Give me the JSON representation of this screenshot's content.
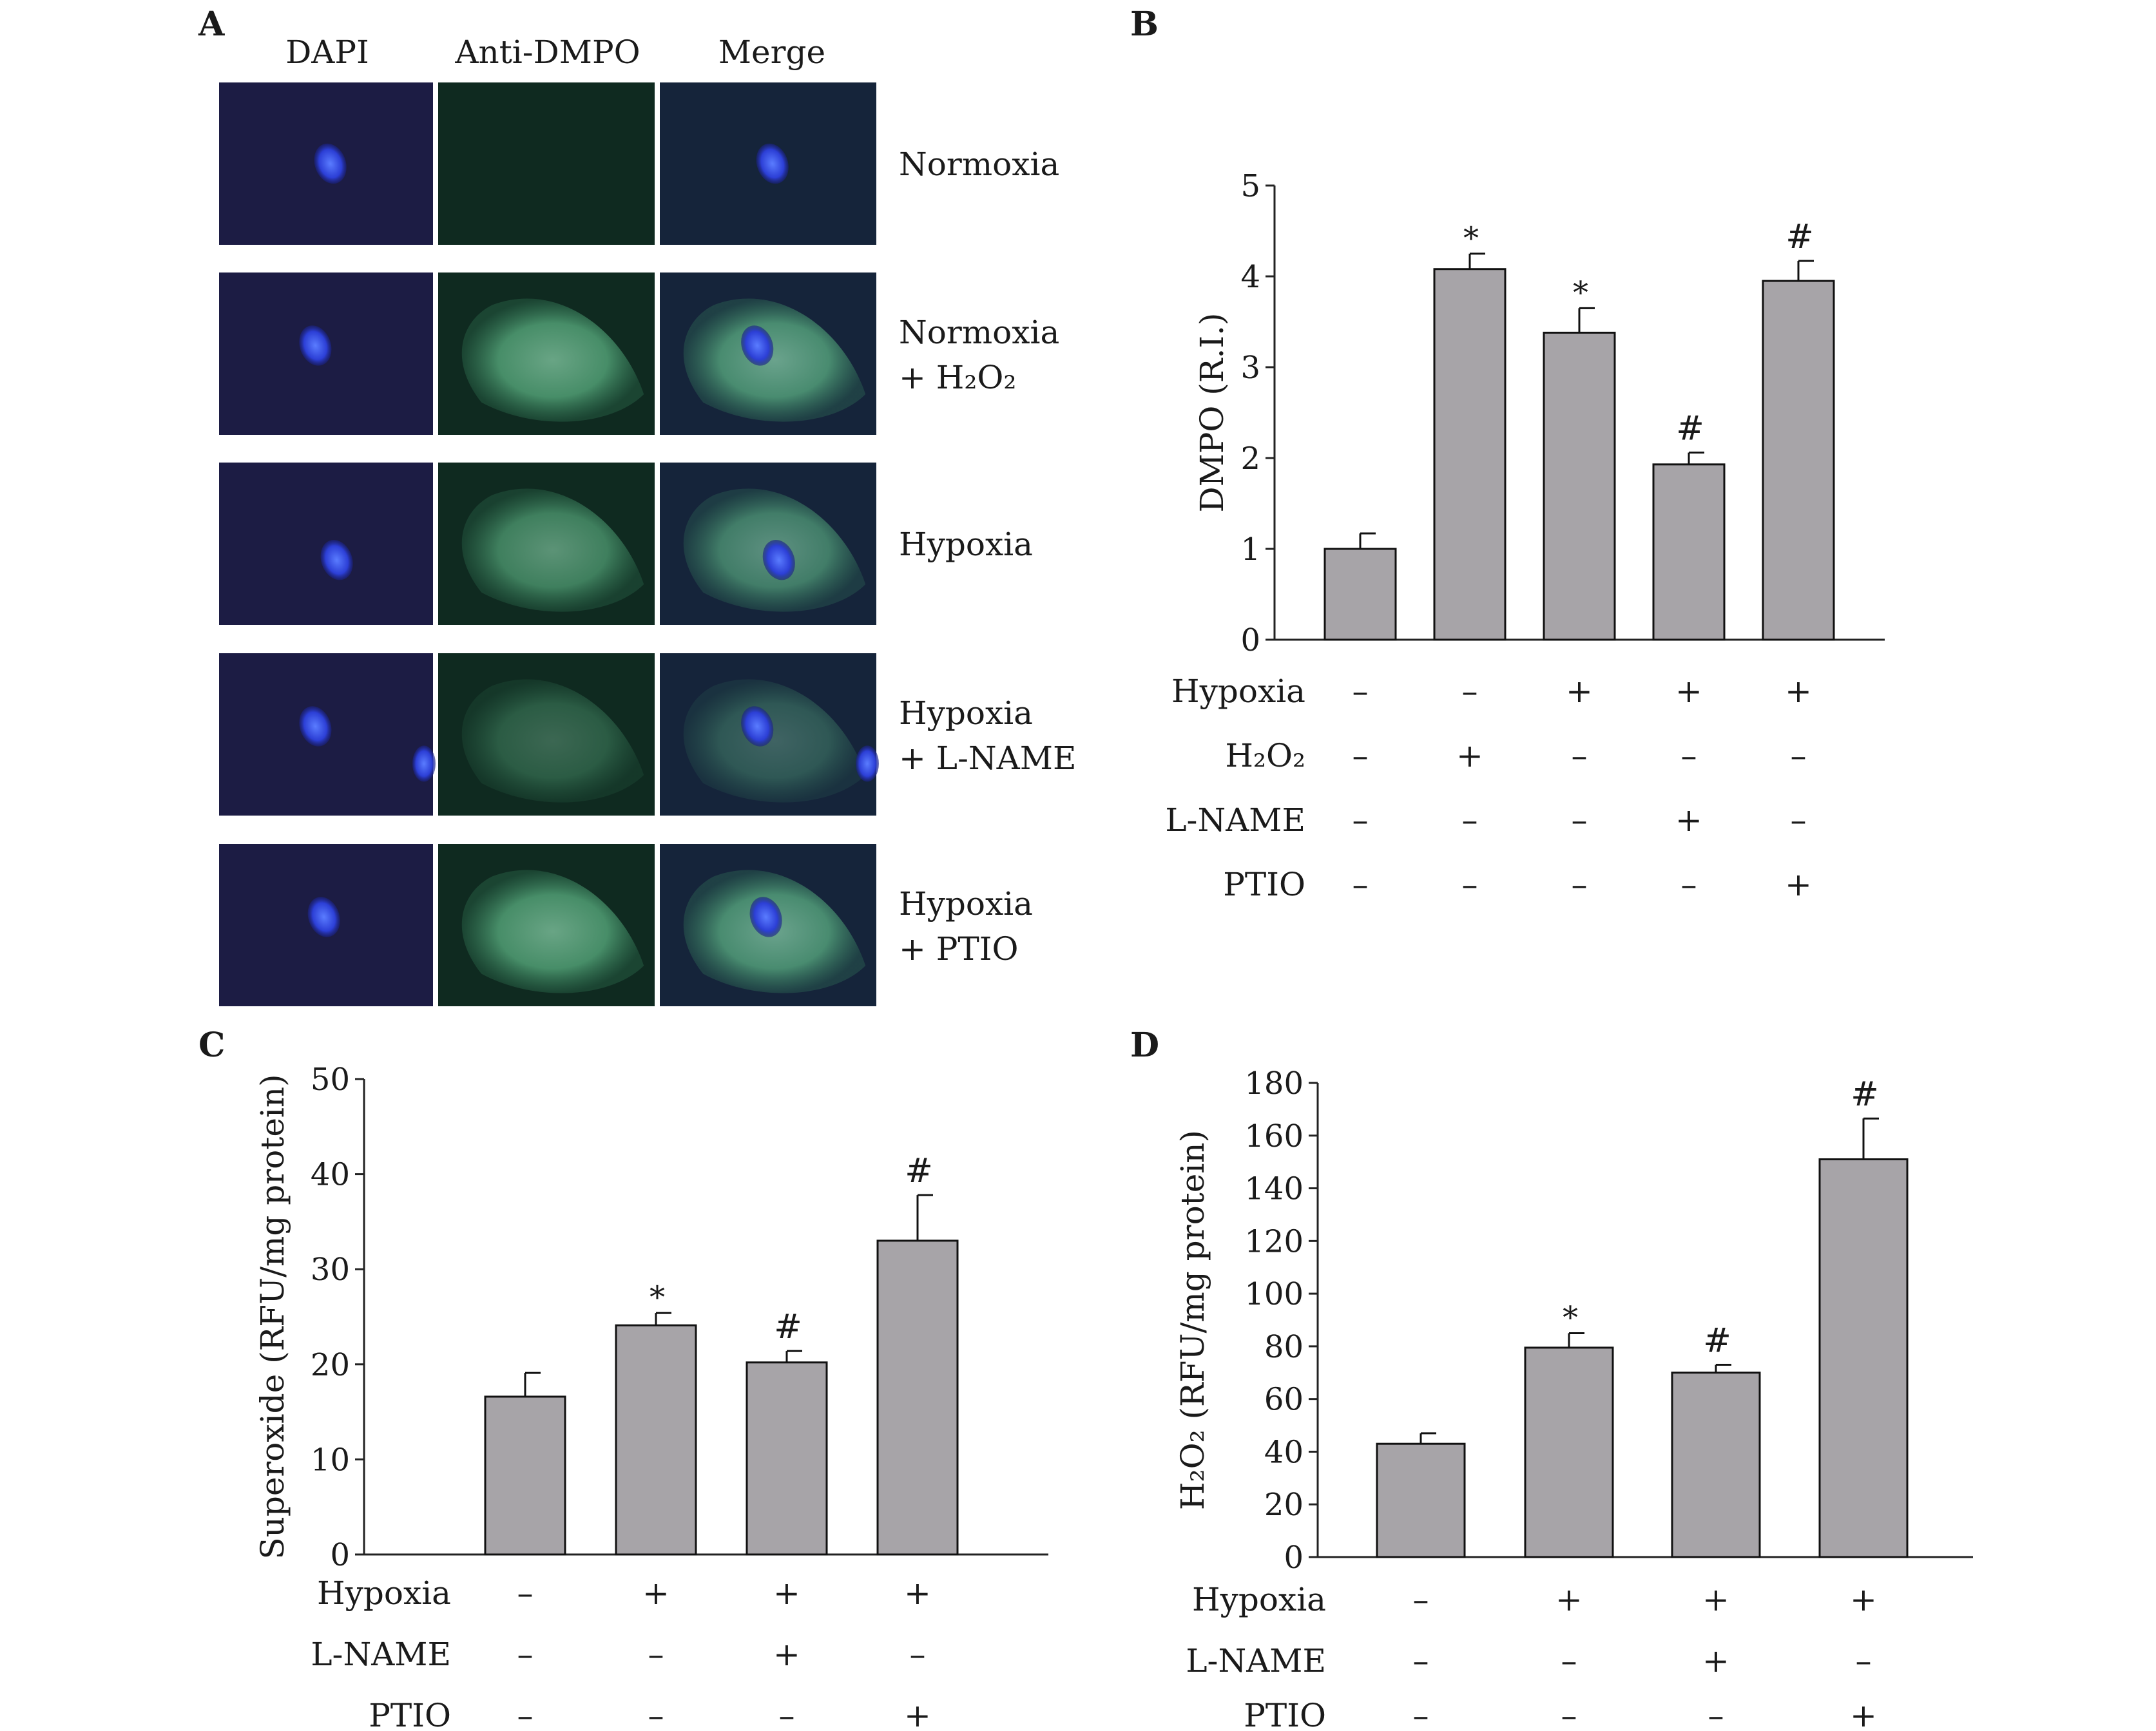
{
  "panels": {
    "A": {
      "label": "A",
      "columns": [
        "DAPI",
        "Anti-DMPO",
        "Merge"
      ],
      "rows": [
        {
          "lines": [
            "Normoxia"
          ],
          "nucleus": [
            0.52,
            0.5
          ],
          "cell_intensity": 0.03,
          "extra_nucleus": false,
          "sub": false
        },
        {
          "lines": [
            "Normoxia",
            "+ H₂O₂"
          ],
          "nucleus": [
            0.45,
            0.45
          ],
          "cell_intensity": 0.7,
          "extra_nucleus": false,
          "sub": true
        },
        {
          "lines": [
            "Hypoxia"
          ],
          "nucleus": [
            0.55,
            0.6
          ],
          "cell_intensity": 0.6,
          "extra_nucleus": false,
          "sub": false
        },
        {
          "lines": [
            "Hypoxia",
            "+ L-NAME"
          ],
          "nucleus": [
            0.45,
            0.45
          ],
          "cell_intensity": 0.35,
          "extra_nucleus": true,
          "sub": false
        },
        {
          "lines": [
            "Hypoxia",
            "+ PTIO"
          ],
          "nucleus": [
            0.49,
            0.45
          ],
          "cell_intensity": 0.7,
          "extra_nucleus": false,
          "sub": false
        }
      ]
    },
    "B": {
      "label": "B"
    },
    "C": {
      "label": "C"
    },
    "D": {
      "label": "D"
    }
  },
  "chart_data": [
    {
      "panel": "B",
      "type": "bar",
      "ylabel": "DMPO (R.I.)",
      "ylim": [
        0,
        5
      ],
      "yticks": [
        0,
        1,
        2,
        3,
        4,
        5
      ],
      "values": [
        1.0,
        4.08,
        3.38,
        1.93,
        3.95
      ],
      "errors": [
        0.17,
        0.17,
        0.27,
        0.13,
        0.22
      ],
      "markers": [
        "",
        "*",
        "*",
        "#",
        "#"
      ],
      "conditions": [
        {
          "name": "Hypoxia",
          "signs": [
            "–",
            "–",
            "+",
            "+",
            "+"
          ]
        },
        {
          "name": "H₂O₂",
          "signs": [
            "–",
            "+",
            "–",
            "–",
            "–"
          ]
        },
        {
          "name": "L-NAME",
          "signs": [
            "–",
            "–",
            "–",
            "+",
            "–"
          ]
        },
        {
          "name": "PTIO",
          "signs": [
            "–",
            "–",
            "–",
            "–",
            "+"
          ]
        }
      ],
      "bar_color": "#a7a4a8"
    },
    {
      "panel": "C",
      "type": "bar",
      "ylabel": "Superoxide (RFU/mg protein)",
      "ylim": [
        0,
        50
      ],
      "yticks": [
        0,
        10,
        20,
        30,
        40,
        50
      ],
      "values": [
        16.6,
        24.1,
        20.2,
        33.0
      ],
      "errors": [
        2.5,
        1.3,
        1.2,
        4.8
      ],
      "markers": [
        "",
        "*",
        "#",
        "#"
      ],
      "conditions": [
        {
          "name": "Hypoxia",
          "signs": [
            "–",
            "+",
            "+",
            "+"
          ]
        },
        {
          "name": "L-NAME",
          "signs": [
            "–",
            "–",
            "+",
            "–"
          ]
        },
        {
          "name": "PTIO",
          "signs": [
            "–",
            "–",
            "–",
            "+"
          ]
        }
      ],
      "bar_color": "#a7a4a8"
    },
    {
      "panel": "D",
      "type": "bar",
      "ylabel": "H₂O₂ (RFU/mg protein)",
      "ylim": [
        0,
        180
      ],
      "yticks": [
        0,
        20,
        40,
        60,
        80,
        100,
        120,
        140,
        160,
        180
      ],
      "values": [
        43,
        79.5,
        70,
        151
      ],
      "errors": [
        4,
        5.5,
        3,
        15.5
      ],
      "markers": [
        "",
        "*",
        "#",
        "#"
      ],
      "conditions": [
        {
          "name": "Hypoxia",
          "signs": [
            "–",
            "+",
            "+",
            "+"
          ]
        },
        {
          "name": "L-NAME",
          "signs": [
            "–",
            "–",
            "+",
            "–"
          ]
        },
        {
          "name": "PTIO",
          "signs": [
            "–",
            "–",
            "–",
            "+"
          ]
        }
      ],
      "bar_color": "#a7a4a8"
    }
  ]
}
